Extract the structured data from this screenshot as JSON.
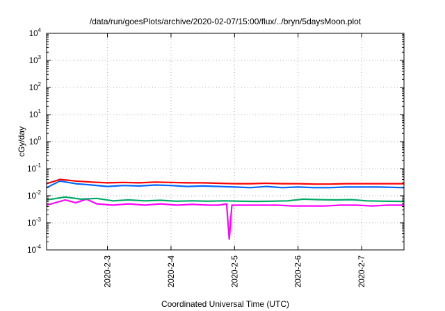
{
  "chart_data": {
    "type": "line",
    "title": "/data/run/goesPlots/archive/2020-02-07/15:00/flux/../bryn/5daysMoon.plot",
    "xlabel": "Coordinated Universal Time (UTC)",
    "ylabel": "cGy/day",
    "y_scale": "log",
    "ylim": [
      0.0001,
      10000
    ],
    "xlim": [
      "2020-02-02T01:00",
      "2020-02-07T16:00"
    ],
    "y_ticks": [
      {
        "base": "10",
        "exp": "-4",
        "value": 0.0001
      },
      {
        "base": "10",
        "exp": "-3",
        "value": 0.001
      },
      {
        "base": "10",
        "exp": "-2",
        "value": 0.01
      },
      {
        "base": "10",
        "exp": "-1",
        "value": 0.1
      },
      {
        "base": "10",
        "exp": "0",
        "value": 1
      },
      {
        "base": "10",
        "exp": "1",
        "value": 10
      },
      {
        "base": "10",
        "exp": "2",
        "value": 100
      },
      {
        "base": "10",
        "exp": "3",
        "value": 1000
      },
      {
        "base": "10",
        "exp": "4",
        "value": 10000
      }
    ],
    "x_ticks": [
      {
        "label": "2020-2-3",
        "value": "2020-02-03T00:00"
      },
      {
        "label": "2020-2-4",
        "value": "2020-02-04T00:00"
      },
      {
        "label": "2020-2-5",
        "value": "2020-02-05T00:00"
      },
      {
        "label": "2020-2-6",
        "value": "2020-02-06T00:00"
      },
      {
        "label": "2020-2-7",
        "value": "2020-02-07T00:00"
      }
    ],
    "grid": true,
    "series": [
      {
        "color": "#ff00ff",
        "x": [
          "2020-02-02T01:00",
          "2020-02-02T08:00",
          "2020-02-02T12:00",
          "2020-02-02T16:00",
          "2020-02-02T20:00",
          "2020-02-03T02:00",
          "2020-02-03T08:00",
          "2020-02-03T14:00",
          "2020-02-03T20:00",
          "2020-02-04T02:00",
          "2020-02-04T08:00",
          "2020-02-04T14:00",
          "2020-02-04T18:00",
          "2020-02-04T21:00",
          "2020-02-04T22:00",
          "2020-02-04T23:00",
          "2020-02-05T04:00",
          "2020-02-05T10:00",
          "2020-02-05T16:00",
          "2020-02-05T22:00",
          "2020-02-06T04:00",
          "2020-02-06T10:00",
          "2020-02-06T16:00",
          "2020-02-06T22:00",
          "2020-02-07T04:00",
          "2020-02-07T10:00",
          "2020-02-07T16:00"
        ],
        "y": [
          0.0045,
          0.007,
          0.0055,
          0.0075,
          0.005,
          0.0045,
          0.005,
          0.0045,
          0.005,
          0.0045,
          0.0048,
          0.0045,
          0.0045,
          0.005,
          0.00025,
          0.0045,
          0.0045,
          0.0045,
          0.0045,
          0.0042,
          0.0042,
          0.0042,
          0.0045,
          0.0045,
          0.0042,
          0.0045,
          0.0045
        ]
      },
      {
        "color": "#00aa66",
        "x": [
          "2020-02-02T01:00",
          "2020-02-02T08:00",
          "2020-02-02T14:00",
          "2020-02-02T20:00",
          "2020-02-03T02:00",
          "2020-02-03T08:00",
          "2020-02-03T14:00",
          "2020-02-03T20:00",
          "2020-02-04T02:00",
          "2020-02-04T08:00",
          "2020-02-04T14:00",
          "2020-02-04T20:00",
          "2020-02-05T02:00",
          "2020-02-05T08:00",
          "2020-02-05T14:00",
          "2020-02-05T20:00",
          "2020-02-06T02:00",
          "2020-02-06T08:00",
          "2020-02-06T14:00",
          "2020-02-06T20:00",
          "2020-02-07T02:00",
          "2020-02-07T08:00",
          "2020-02-07T16:00"
        ],
        "y": [
          0.007,
          0.009,
          0.0075,
          0.008,
          0.0065,
          0.007,
          0.0065,
          0.0068,
          0.0063,
          0.0065,
          0.0063,
          0.0065,
          0.0063,
          0.0062,
          0.0063,
          0.0065,
          0.0075,
          0.0072,
          0.007,
          0.0072,
          0.0065,
          0.0063,
          0.0062
        ]
      },
      {
        "color": "#0066ff",
        "x": [
          "2020-02-02T01:00",
          "2020-02-02T06:00",
          "2020-02-02T12:00",
          "2020-02-02T18:00",
          "2020-02-03T00:00",
          "2020-02-03T06:00",
          "2020-02-03T12:00",
          "2020-02-03T18:00",
          "2020-02-04T00:00",
          "2020-02-04T06:00",
          "2020-02-04T12:00",
          "2020-02-04T18:00",
          "2020-02-05T00:00",
          "2020-02-05T06:00",
          "2020-02-05T12:00",
          "2020-02-05T18:00",
          "2020-02-06T00:00",
          "2020-02-06T06:00",
          "2020-02-06T12:00",
          "2020-02-06T18:00",
          "2020-02-07T00:00",
          "2020-02-07T06:00",
          "2020-02-07T16:00"
        ],
        "y": [
          0.02,
          0.035,
          0.028,
          0.025,
          0.022,
          0.024,
          0.023,
          0.025,
          0.024,
          0.022,
          0.023,
          0.022,
          0.021,
          0.02,
          0.022,
          0.02,
          0.021,
          0.02,
          0.02,
          0.021,
          0.021,
          0.021,
          0.02
        ]
      },
      {
        "color": "#ff0000",
        "x": [
          "2020-02-02T01:00",
          "2020-02-02T06:00",
          "2020-02-02T12:00",
          "2020-02-02T18:00",
          "2020-02-03T00:00",
          "2020-02-03T06:00",
          "2020-02-03T12:00",
          "2020-02-03T18:00",
          "2020-02-04T00:00",
          "2020-02-04T06:00",
          "2020-02-04T12:00",
          "2020-02-04T18:00",
          "2020-02-05T00:00",
          "2020-02-05T06:00",
          "2020-02-05T12:00",
          "2020-02-05T18:00",
          "2020-02-06T00:00",
          "2020-02-06T06:00",
          "2020-02-06T12:00",
          "2020-02-06T18:00",
          "2020-02-07T00:00",
          "2020-02-07T06:00",
          "2020-02-07T16:00"
        ],
        "y": [
          0.028,
          0.04,
          0.035,
          0.032,
          0.03,
          0.031,
          0.03,
          0.032,
          0.031,
          0.03,
          0.03,
          0.029,
          0.028,
          0.028,
          0.029,
          0.028,
          0.028,
          0.027,
          0.027,
          0.028,
          0.028,
          0.028,
          0.028
        ]
      }
    ]
  }
}
